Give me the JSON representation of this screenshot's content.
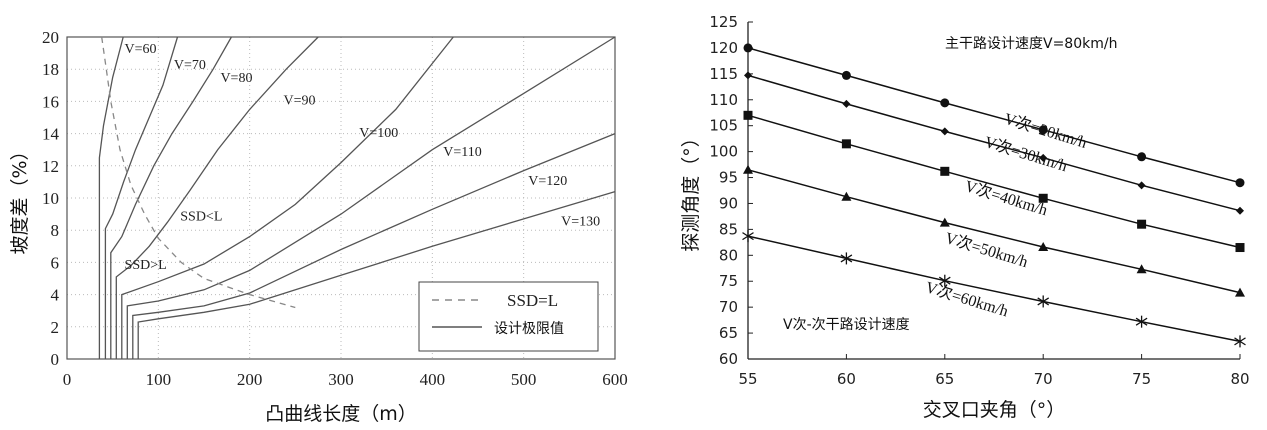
{
  "chart_data": [
    {
      "type": "line",
      "xlabel": "凸曲线长度（m）",
      "ylabel": "坡度差（%）",
      "xlim": [
        0,
        600
      ],
      "ylim": [
        0,
        20
      ],
      "xticks": [
        "0",
        "100",
        "200",
        "300",
        "400",
        "500",
        "600"
      ],
      "yticks": [
        "0",
        "2",
        "4",
        "6",
        "8",
        "10",
        "12",
        "14",
        "16",
        "18",
        "20"
      ],
      "grid": "dotted",
      "legend": {
        "placement": "bottom-right",
        "entries": [
          "SSD=L",
          "设计极限值"
        ]
      },
      "series": [
        {
          "name": "V=60",
          "style": "solid",
          "points": [
            [
              35.5,
              0
            ],
            [
              35.5,
              12.5
            ],
            [
              40,
              14.5
            ],
            [
              50,
              17.5
            ],
            [
              61.5,
              20
            ]
          ],
          "label_at": [
            63,
            19
          ]
        },
        {
          "name": "V=70",
          "style": "solid",
          "points": [
            [
              42,
              0
            ],
            [
              42,
              8.1
            ],
            [
              50,
              9
            ],
            [
              62,
              11
            ],
            [
              75,
              13
            ],
            [
              90,
              15
            ],
            [
              105,
              17
            ],
            [
              121,
              20
            ]
          ],
          "label_at": [
            117,
            18
          ]
        },
        {
          "name": "V=80",
          "style": "solid",
          "points": [
            [
              48,
              0
            ],
            [
              48,
              6.6
            ],
            [
              60,
              7.6
            ],
            [
              75,
              9.6
            ],
            [
              95,
              12
            ],
            [
              115,
              14
            ],
            [
              138,
              16
            ],
            [
              160,
              18
            ],
            [
              180,
              20
            ]
          ],
          "label_at": [
            168,
            17.2
          ]
        },
        {
          "name": "V=90",
          "style": "solid",
          "points": [
            [
              54,
              0
            ],
            [
              54,
              5.1
            ],
            [
              70,
              5.8
            ],
            [
              90,
              7
            ],
            [
              110,
              8.5
            ],
            [
              135,
              10.5
            ],
            [
              165,
              13
            ],
            [
              200,
              15.5
            ],
            [
              240,
              18
            ],
            [
              275,
              20
            ]
          ],
          "label_at": [
            237,
            15.8
          ]
        },
        {
          "name": "V=100",
          "style": "solid",
          "points": [
            [
              60,
              0
            ],
            [
              60,
              4
            ],
            [
              100,
              4.8
            ],
            [
              150,
              5.9
            ],
            [
              200,
              7.6
            ],
            [
              250,
              9.6
            ],
            [
              300,
              12.2
            ],
            [
              360,
              15.5
            ],
            [
              423,
              20
            ]
          ],
          "label_at": [
            320,
            13.8
          ]
        },
        {
          "name": "V=110",
          "style": "solid",
          "points": [
            [
              66,
              0
            ],
            [
              66,
              3.3
            ],
            [
              100,
              3.6
            ],
            [
              150,
              4.3
            ],
            [
              200,
              5.5
            ],
            [
              300,
              9
            ],
            [
              400,
              13
            ],
            [
              500,
              16.5
            ],
            [
              600,
              20
            ]
          ],
          "label_at": [
            412,
            12.6
          ]
        },
        {
          "name": "V=120",
          "style": "solid",
          "points": [
            [
              72,
              0
            ],
            [
              72,
              2.7
            ],
            [
              100,
              2.9
            ],
            [
              150,
              3.3
            ],
            [
              200,
              4.1
            ],
            [
              300,
              6.8
            ],
            [
              400,
              9.3
            ],
            [
              500,
              11.7
            ],
            [
              600,
              14
            ]
          ],
          "label_at": [
            505,
            10.8
          ]
        },
        {
          "name": "V=130",
          "style": "solid",
          "points": [
            [
              78,
              0
            ],
            [
              78,
              2.3
            ],
            [
              100,
              2.5
            ],
            [
              150,
              2.9
            ],
            [
              200,
              3.4
            ],
            [
              300,
              5.2
            ],
            [
              400,
              7
            ],
            [
              500,
              8.7
            ],
            [
              600,
              10.4
            ]
          ],
          "label_at": [
            541,
            8.3
          ]
        },
        {
          "name": "SSD=L",
          "style": "dashed",
          "points": [
            [
              38,
              20
            ],
            [
              43,
              18
            ],
            [
              48,
              16
            ],
            [
              58,
              13
            ],
            [
              70,
              10.8
            ],
            [
              85,
              9
            ],
            [
              100,
              7.5
            ],
            [
              125,
              6
            ],
            [
              150,
              5
            ],
            [
              200,
              4
            ],
            [
              250,
              3.2
            ]
          ]
        }
      ],
      "annotations": [
        {
          "text": "SSD<L",
          "at": [
            124,
            8.6
          ]
        },
        {
          "text": "SSD>L",
          "at": [
            63,
            5.6
          ]
        }
      ]
    },
    {
      "type": "line",
      "title": "主干路设计速度V=80km/h",
      "xlabel": "交叉口夹角（°）",
      "ylabel": "探测角度（°）",
      "xlim": [
        55,
        80
      ],
      "ylim": [
        60,
        125
      ],
      "x": [
        55,
        60,
        65,
        70,
        75,
        80
      ],
      "xticks": [
        "55",
        "60",
        "65",
        "70",
        "75",
        "80"
      ],
      "yticks": [
        "60",
        "65",
        "70",
        "75",
        "80",
        "85",
        "90",
        "95",
        "100",
        "105",
        "110",
        "115",
        "120",
        "125"
      ],
      "series": [
        {
          "name": "V次=20km/h",
          "marker": "circle",
          "values": [
            120,
            114.7,
            109.4,
            104.2,
            99,
            94
          ]
        },
        {
          "name": "V次=30km/h",
          "marker": "diamond",
          "values": [
            114.7,
            109.2,
            103.9,
            98.8,
            93.5,
            88.6
          ]
        },
        {
          "name": "V次=40km/h",
          "marker": "square",
          "values": [
            107,
            101.5,
            96.2,
            91,
            86,
            81.5
          ]
        },
        {
          "name": "V次=50km/h",
          "marker": "triangle",
          "values": [
            96.5,
            91.3,
            86.3,
            81.6,
            77.3,
            72.8
          ]
        },
        {
          "name": "V次=60km/h",
          "marker": "asterisk",
          "values": [
            83.7,
            79.4,
            75.1,
            71.1,
            67.2,
            63.4
          ]
        }
      ],
      "note": "V次-次干路设计速度"
    }
  ]
}
